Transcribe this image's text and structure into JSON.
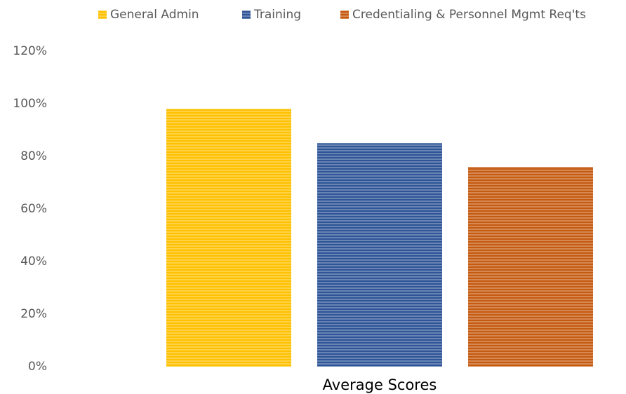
{
  "chart_data": {
    "type": "bar",
    "categories": [
      "Average Scores"
    ],
    "series": [
      {
        "name": "General Admin",
        "color": "#ffc000",
        "values": [
          98
        ]
      },
      {
        "name": "Training",
        "color": "#2f5597",
        "values": [
          85
        ]
      },
      {
        "name": "Credentialing & Personnel Mgmt Req'ts",
        "color": "#c55a11",
        "values": [
          76
        ]
      }
    ],
    "ylim": [
      0,
      120
    ],
    "yticks": [
      {
        "value": 0,
        "label": "0%"
      },
      {
        "value": 20,
        "label": "20%"
      },
      {
        "value": 40,
        "label": "40%"
      },
      {
        "value": 60,
        "label": "60%"
      },
      {
        "value": 80,
        "label": "80%"
      },
      {
        "value": 100,
        "label": "100%"
      },
      {
        "value": 120,
        "label": "120%"
      }
    ],
    "grid": false,
    "legend": "top"
  }
}
